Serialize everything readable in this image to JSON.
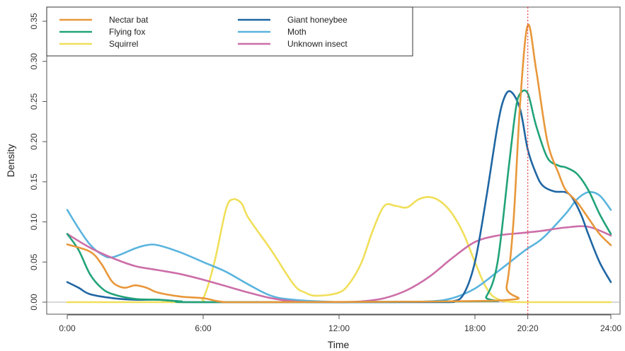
{
  "chart_data": {
    "type": "line",
    "title": "",
    "xlabel": "Time",
    "ylabel": "Density",
    "xlim": [
      0,
      24
    ],
    "ylim": [
      0,
      0.35
    ],
    "x_ticks": [
      {
        "value": 0,
        "label": "0:00"
      },
      {
        "value": 6,
        "label": "6:00"
      },
      {
        "value": 12,
        "label": "12:00"
      },
      {
        "value": 18,
        "label": "18:00"
      },
      {
        "value": 20.333,
        "label": "20:20",
        "color": "#e8383d"
      },
      {
        "value": 24,
        "label": "24:00"
      }
    ],
    "y_ticks": [
      {
        "value": 0,
        "label": "0.00"
      },
      {
        "value": 0.05,
        "label": "0.05"
      },
      {
        "value": 0.1,
        "label": "0.10"
      },
      {
        "value": 0.15,
        "label": "0.15"
      },
      {
        "value": 0.2,
        "label": "0.20"
      },
      {
        "value": 0.25,
        "label": "0.25"
      },
      {
        "value": 0.3,
        "label": "0.30"
      },
      {
        "value": 0.35,
        "label": "0.35"
      }
    ],
    "reference_line": {
      "x": 20.333,
      "color": "#e8383d",
      "style": "dotted"
    },
    "baseline": {
      "y": 0,
      "color": "#b0b0b0"
    },
    "legend": {
      "position": "top-left",
      "columns": 2
    },
    "series": [
      {
        "name": "Nectar bat",
        "color": "#e8973a",
        "x": [
          0,
          1,
          1.5,
          2,
          2.5,
          3,
          3.5,
          4,
          5,
          6,
          6.5,
          7,
          8,
          19,
          19.4,
          19.7,
          20,
          20.333,
          20.7,
          21.2,
          21.7,
          22,
          22.5,
          23,
          23.5,
          24
        ],
        "y": [
          0.072,
          0.063,
          0.048,
          0.025,
          0.018,
          0.021,
          0.018,
          0.012,
          0.007,
          0.005,
          0.002,
          0,
          0,
          0.002,
          0.02,
          0.1,
          0.25,
          0.345,
          0.29,
          0.2,
          0.16,
          0.14,
          0.125,
          0.105,
          0.085,
          0.071
        ]
      },
      {
        "name": "Flying fox",
        "color": "#22a37a",
        "x": [
          0,
          0.5,
          1,
          1.5,
          2,
          3,
          4,
          5,
          6,
          18,
          18.5,
          19,
          19.5,
          19.8,
          20,
          20.333,
          20.7,
          21.2,
          21.7,
          22,
          22.5,
          23,
          23.5,
          24
        ],
        "y": [
          0.085,
          0.065,
          0.035,
          0.018,
          0.01,
          0.004,
          0.003,
          0.001,
          0,
          0.001,
          0.007,
          0.05,
          0.17,
          0.24,
          0.26,
          0.26,
          0.22,
          0.18,
          0.17,
          0.168,
          0.16,
          0.14,
          0.11,
          0.085
        ]
      },
      {
        "name": "Squirrel",
        "color": "#f0df5a",
        "x": [
          0,
          5.5,
          6,
          6.5,
          7,
          7.3,
          7.7,
          8,
          9,
          10,
          10.5,
          11,
          12,
          12.5,
          13,
          13.5,
          14,
          14.5,
          15,
          15.5,
          16,
          16.5,
          17,
          17.5,
          18,
          18.5,
          19,
          20,
          24
        ],
        "y": [
          0,
          0,
          0.005,
          0.05,
          0.115,
          0.128,
          0.123,
          0.105,
          0.065,
          0.022,
          0.012,
          0.008,
          0.012,
          0.025,
          0.05,
          0.09,
          0.12,
          0.12,
          0.118,
          0.128,
          0.131,
          0.125,
          0.11,
          0.085,
          0.05,
          0.018,
          0.004,
          0,
          0
        ]
      },
      {
        "name": "Giant honeybee",
        "color": "#1f66a3",
        "x": [
          0,
          0.5,
          1,
          2,
          3,
          4,
          5,
          6,
          16,
          17,
          17.5,
          18,
          18.5,
          19,
          19.3,
          19.6,
          20,
          20.333,
          20.7,
          21,
          21.5,
          22,
          22.3,
          22.7,
          23,
          23.5,
          24
        ],
        "y": [
          0.025,
          0.018,
          0.01,
          0.005,
          0.003,
          0.003,
          0.001,
          0,
          0,
          0.001,
          0.01,
          0.05,
          0.13,
          0.22,
          0.255,
          0.262,
          0.24,
          0.19,
          0.16,
          0.145,
          0.138,
          0.137,
          0.13,
          0.108,
          0.085,
          0.05,
          0.025
        ]
      },
      {
        "name": "Moth",
        "color": "#5ab4de",
        "x": [
          0,
          0.5,
          1,
          1.5,
          2,
          3,
          3.5,
          4,
          5,
          6,
          7,
          8,
          9,
          10,
          12,
          14,
          16,
          17,
          18,
          19,
          20,
          20.333,
          21,
          22,
          22.5,
          23,
          23.5,
          24
        ],
        "y": [
          0.115,
          0.092,
          0.072,
          0.06,
          0.056,
          0.067,
          0.071,
          0.071,
          0.062,
          0.05,
          0.038,
          0.022,
          0.008,
          0.003,
          0,
          0,
          0.001,
          0.005,
          0.017,
          0.038,
          0.06,
          0.067,
          0.08,
          0.11,
          0.128,
          0.137,
          0.133,
          0.115
        ]
      },
      {
        "name": "Unknown insect",
        "color": "#cc6ea8",
        "x": [
          0,
          1,
          2,
          3,
          4,
          5,
          6,
          7,
          8,
          9,
          10,
          11,
          12,
          13,
          14,
          15,
          16,
          17,
          18,
          19,
          20,
          20.333,
          21,
          22,
          23,
          24
        ],
        "y": [
          0.085,
          0.068,
          0.055,
          0.045,
          0.04,
          0.035,
          0.028,
          0.02,
          0.012,
          0.005,
          0.001,
          0,
          0,
          0.001,
          0.005,
          0.015,
          0.032,
          0.055,
          0.075,
          0.083,
          0.086,
          0.087,
          0.089,
          0.093,
          0.094,
          0.083
        ]
      }
    ]
  }
}
